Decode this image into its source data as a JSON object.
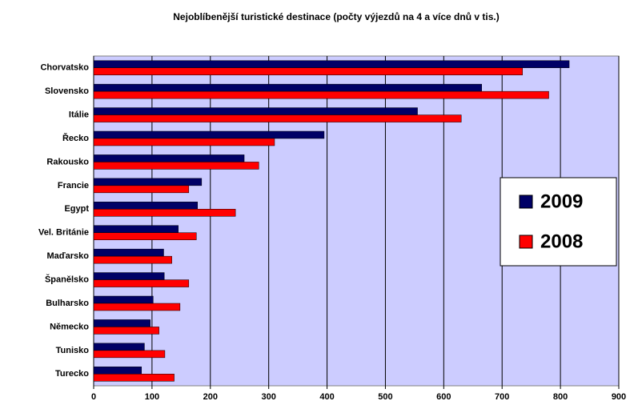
{
  "chart_data": {
    "type": "bar",
    "orientation": "horizontal",
    "title": "Nejoblíbenější turistické destinace (počty výjezdů na 4 a více dnů v tis.)",
    "categories": [
      "Chorvatsko",
      "Slovensko",
      "Itálie",
      "Řecko",
      "Rakousko",
      "Francie",
      "Egypt",
      "Vel. Británie",
      "Maďarsko",
      "Španělsko",
      "Bulharsko",
      "Německo",
      "Tunisko",
      "Turecko"
    ],
    "series": [
      {
        "name": "2009",
        "color": "#000066",
        "values": [
          815,
          665,
          555,
          395,
          258,
          185,
          178,
          145,
          120,
          121,
          102,
          97,
          87,
          82
        ]
      },
      {
        "name": "2008",
        "color": "#ff0000",
        "values": [
          735,
          780,
          630,
          310,
          283,
          163,
          243,
          176,
          134,
          163,
          148,
          112,
          122,
          138
        ]
      }
    ],
    "xlim": [
      0,
      900
    ],
    "xticks": [
      0,
      100,
      200,
      300,
      400,
      500,
      600,
      700,
      800,
      900
    ],
    "grid": true,
    "legend": "right"
  }
}
